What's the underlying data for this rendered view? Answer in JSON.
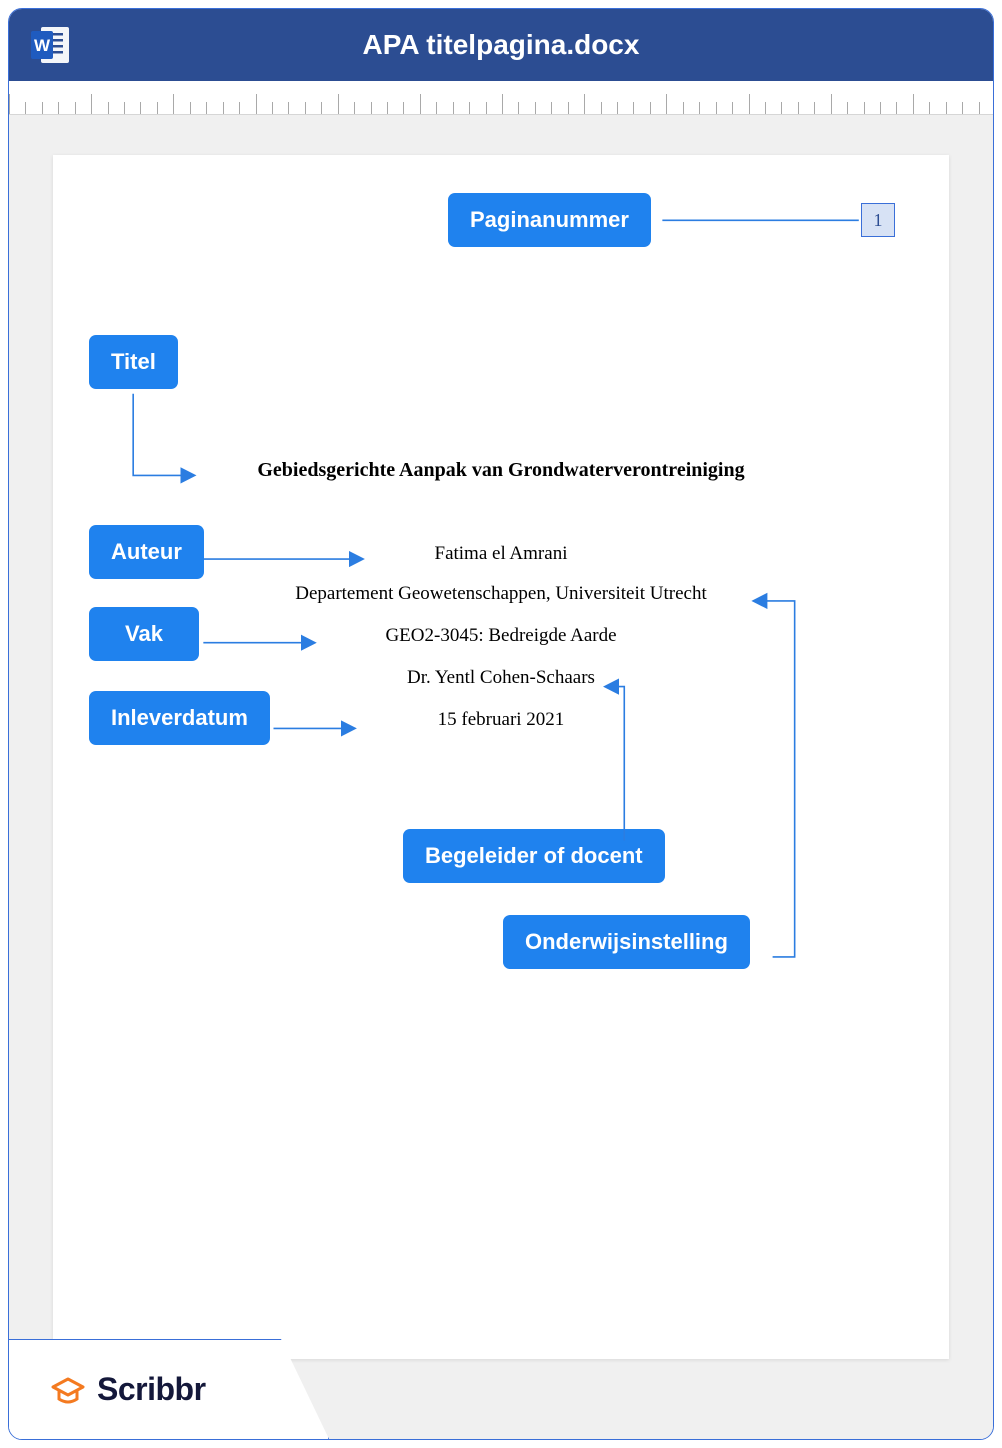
{
  "window": {
    "title": "APA titelpagina.docx",
    "titlebar_bg": "#2c4d92",
    "border_color": "#3a6fd8"
  },
  "ruler": {
    "tick_count": 60,
    "major_every": 5,
    "minor_height": 12,
    "major_height": 20,
    "color": "#a9a9a9"
  },
  "labels": {
    "pagenumber": "Paginanummer",
    "title": "Titel",
    "author": "Auteur",
    "course": "Vak",
    "due_date": "Inleverdatum",
    "supervisor": "Begeleider of docent",
    "institution": "Onderwijsinstelling",
    "bg": "#1f82ee",
    "color": "#ffffff",
    "radius": 7
  },
  "document": {
    "page_number": "1",
    "page_number_bg": "#d7e2f5",
    "page_number_border": "#3a6fd8",
    "title_text": "Gebiedsgerichte Aanpak van Grondwaterverontreiniging",
    "author_text": "Fatima el Amrani",
    "institution_text": "Departement Geowetenschappen, Universiteit Utrecht",
    "course_text": "GEO2-3045: Bedreigde Aarde",
    "supervisor_text": "Dr. Yentl Cohen-Schaars",
    "date_text": "15 februari 2021"
  },
  "footer": {
    "brand": "Scribbr",
    "icon_color": "#f47a20",
    "text_color": "#14183a"
  },
  "connectors": {
    "line_color": "#2b7de1",
    "arrow_color": "#2b7de1",
    "line_width": 1.6
  }
}
